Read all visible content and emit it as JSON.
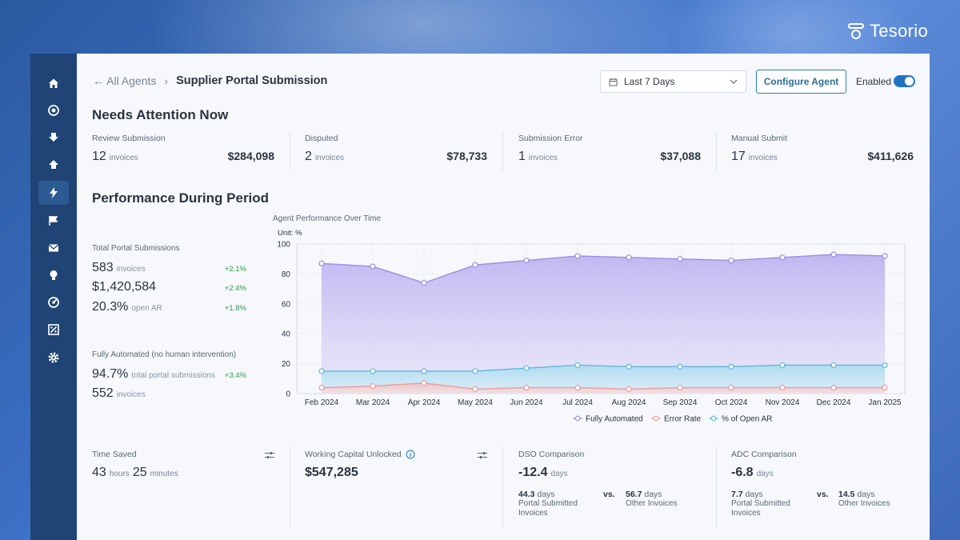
{
  "brand": {
    "name": "Tesorio"
  },
  "nav": {
    "items": [
      "home-icon",
      "target-icon",
      "download-icon",
      "upload-icon",
      "agents-icon",
      "flag-icon",
      "mail-icon",
      "bulb-icon",
      "goal-icon",
      "percent-icon",
      "settings-icon"
    ],
    "active_index": 4
  },
  "breadcrumb": {
    "back": "All Agents",
    "separator": "›",
    "current": "Supplier Portal Submission"
  },
  "header": {
    "date_range": "Last 7 Days",
    "configure_label": "Configure Agent",
    "enabled_label": "Enabled",
    "enabled": true
  },
  "needs_attention": {
    "title": "Needs Attention Now",
    "cards": [
      {
        "label": "Review Submission",
        "count": "12",
        "unit": "invoices",
        "amount": "$284,098"
      },
      {
        "label": "Disputed",
        "count": "2",
        "unit": "invoices",
        "amount": "$78,733"
      },
      {
        "label": "Submission Error",
        "count": "1",
        "unit": "invoices",
        "amount": "$37,088"
      },
      {
        "label": "Manual Submit",
        "count": "17",
        "unit": "invoices",
        "amount": "$411,626"
      }
    ]
  },
  "performance": {
    "title": "Performance During Period",
    "total_label": "Total Portal Submissions",
    "total_rows": [
      {
        "value": "583",
        "unit": "invoices",
        "delta": "+2.1%"
      },
      {
        "value": "$1,420,584",
        "unit": "",
        "delta": "+2.4%"
      },
      {
        "value": "20.3%",
        "unit": "open AR",
        "delta": "+1.8%"
      }
    ],
    "automated_label": "Fully Automated (no human intervention)",
    "automated_rows": [
      {
        "value": "94.7%",
        "unit": "total portal submissions",
        "delta": "+3.4%"
      },
      {
        "value": "552",
        "unit": "invoices",
        "delta": ""
      }
    ]
  },
  "chart_data": {
    "type": "area",
    "title": "Agent Performance Over Time",
    "unit_label": "Unit: %",
    "categories": [
      "Feb 2024",
      "Mar 2024",
      "Apr 2024",
      "May 2024",
      "Jun 2024",
      "Jul 2024",
      "Aug 2024",
      "Sep 2024",
      "Oct 2024",
      "Nov 2024",
      "Dec 2024",
      "Jan 2025"
    ],
    "ylim": [
      0,
      100
    ],
    "yticks": [
      0,
      20,
      40,
      60,
      80,
      100
    ],
    "grid": true,
    "legend_position": "bottom",
    "series": [
      {
        "name": "Fully Automated",
        "color": "#9b8de0",
        "values": [
          87,
          85,
          74,
          86,
          89,
          92,
          91,
          90,
          89,
          91,
          93,
          92
        ]
      },
      {
        "name": "Error Rate",
        "color": "#e99a9a",
        "values": [
          4,
          5,
          7,
          3,
          4,
          4,
          3,
          4,
          4,
          4,
          4,
          4
        ]
      },
      {
        "name": "% of Open AR",
        "color": "#5fb8d8",
        "values": [
          15,
          15,
          15,
          15,
          17,
          19,
          18,
          18,
          18,
          19,
          19,
          19
        ]
      }
    ]
  },
  "bottom": {
    "time_saved": {
      "label": "Time Saved",
      "hours": "43",
      "hours_unit": "hours",
      "minutes": "25",
      "minutes_unit": "minutes"
    },
    "working_capital": {
      "label": "Working Capital Unlocked",
      "amount": "$547,285"
    },
    "dso": {
      "label": "DSO Comparison",
      "value": "-12.4",
      "unit": "days",
      "left_value": "44.3",
      "left_unit": "days",
      "left_label": "Portal Submitted Invoices",
      "vs": "vs.",
      "right_value": "56.7",
      "right_unit": "days",
      "right_label": "Other Invoices"
    },
    "adc": {
      "label": "ADC Comparison",
      "value": "-6.8",
      "unit": "days",
      "left_value": "7.7",
      "left_unit": "days",
      "left_label": "Portal Submitted Invoices",
      "vs": "vs.",
      "right_value": "14.5",
      "right_unit": "days",
      "right_label": "Other Invoices"
    }
  }
}
